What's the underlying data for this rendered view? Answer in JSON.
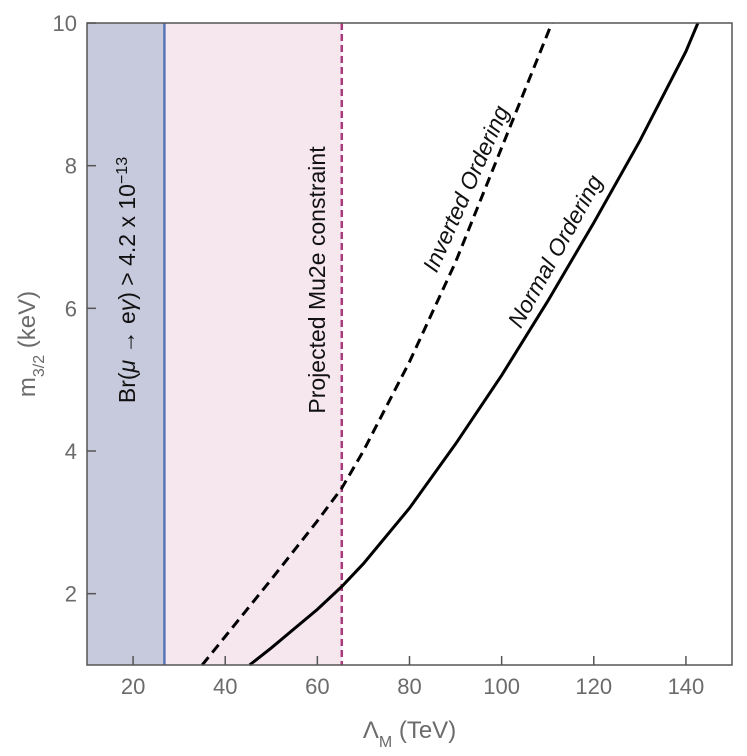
{
  "chart_data": {
    "type": "line",
    "xlabel": {
      "main": "Λ",
      "sub": "M",
      "rest": " (TeV)"
    },
    "ylabel": {
      "main": "m",
      "sub": "3/2",
      "rest": " (keV)"
    },
    "xlim": [
      10,
      150
    ],
    "ylim": [
      1,
      10
    ],
    "xticks": [
      20,
      40,
      60,
      80,
      100,
      120,
      140
    ],
    "yticks": [
      2,
      4,
      6,
      8,
      10
    ],
    "grid": false,
    "regions": [
      {
        "xmin": 10,
        "xmax": 26.8,
        "color": "#c7c9dd",
        "border": "#5a74b5",
        "border_style": "solid",
        "label": {
          "pre": "Br(",
          "mu": "μ",
          "arrow": " → e",
          "gamma": "γ",
          "post": ") > 4.2 x 10",
          "exp": "−13"
        }
      },
      {
        "xmin": 10,
        "xmax": 65.3,
        "color": "#f6e7ef",
        "border": "#a83a7e",
        "border_style": "dashed",
        "label": {
          "text": "Projected Mu2e constraint"
        }
      }
    ],
    "series": [
      {
        "name": "Normal Ordering",
        "style": "solid",
        "color": "#000000",
        "x": [
          45.3,
          50,
          60,
          65.3,
          70,
          80,
          90,
          100,
          110,
          120,
          130,
          140,
          142.6
        ],
        "y": [
          1.0,
          1.24,
          1.78,
          2.1,
          2.42,
          3.2,
          4.1,
          5.06,
          6.1,
          7.2,
          8.35,
          9.6,
          10.0
        ]
      },
      {
        "name": "Inverted Ordering",
        "style": "dashed",
        "color": "#000000",
        "x": [
          35.0,
          40,
          50,
          60,
          65.3,
          70,
          80,
          90,
          100,
          110.9
        ],
        "y": [
          1.0,
          1.4,
          2.2,
          3.02,
          3.48,
          4.0,
          5.25,
          6.65,
          8.25,
          10.0
        ]
      }
    ]
  }
}
